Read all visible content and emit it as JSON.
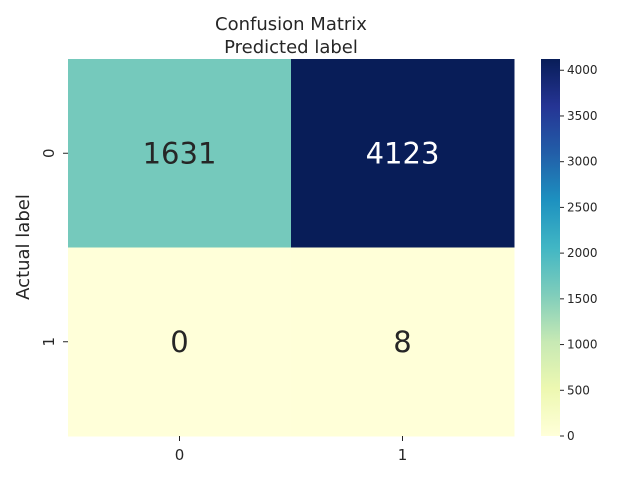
{
  "chart_data": {
    "type": "heatmap",
    "title": "Confusion Matrix",
    "subtitle": "Predicted label",
    "xlabel": "",
    "ylabel": "Actual label",
    "x_categories": [
      "0",
      "1"
    ],
    "y_categories": [
      "0",
      "1"
    ],
    "values": [
      [
        1631,
        4123
      ],
      [
        0,
        8
      ]
    ],
    "value_labels": [
      [
        "1631",
        "4123"
      ],
      [
        "0",
        "8"
      ]
    ],
    "colormap": "YlGnBu",
    "color_range": [
      0,
      4123
    ],
    "colorbar": {
      "ticks": [
        0,
        500,
        1000,
        1500,
        2000,
        2500,
        3000,
        3500,
        4000
      ],
      "tick_labels": [
        "0",
        "500",
        "1000",
        "1500",
        "2000",
        "2500",
        "3000",
        "3500",
        "4000"
      ]
    },
    "grid": false
  }
}
